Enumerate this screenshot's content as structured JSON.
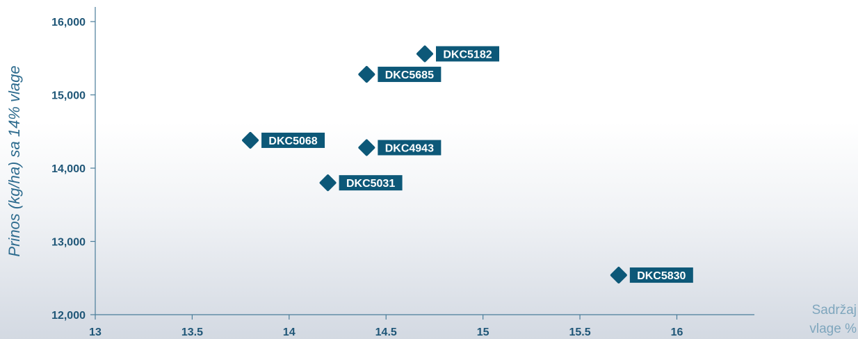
{
  "chart_data": {
    "type": "scatter",
    "title": "",
    "xlabel_lines": [
      "Sadržaj",
      "vlage %"
    ],
    "ylabel": "Prinos (kg/ha) sa 14% vlage",
    "xlim": [
      13,
      16.4
    ],
    "ylim": [
      12000,
      16200
    ],
    "xticks": [
      13,
      13.5,
      14,
      14.5,
      15,
      15.5,
      16
    ],
    "xtick_labels": [
      "13",
      "13.5",
      "14",
      "14.5",
      "15",
      "15.5",
      "16"
    ],
    "yticks": [
      12000,
      13000,
      14000,
      15000,
      16000
    ],
    "ytick_labels": [
      "12,000",
      "13,000",
      "14,000",
      "15,000",
      "16,000"
    ],
    "grid": false,
    "points": [
      {
        "label": "DKC5182",
        "x": 14.7,
        "y": 15560
      },
      {
        "label": "DKC5685",
        "x": 14.4,
        "y": 15280
      },
      {
        "label": "DKC5068",
        "x": 13.8,
        "y": 14380
      },
      {
        "label": "DKC4943",
        "x": 14.4,
        "y": 14280
      },
      {
        "label": "DKC5031",
        "x": 14.2,
        "y": 13800
      },
      {
        "label": "DKC5830",
        "x": 15.7,
        "y": 12540
      }
    ],
    "colors": {
      "marker": "#0d5878",
      "label_bg": "#0d5878",
      "label_text": "#ffffff",
      "axis": "#4a7d9a",
      "tick_text": "#1f5677",
      "ylabel_text": "#2d6b8e",
      "xlabel_text": "#7fa6bd"
    }
  }
}
